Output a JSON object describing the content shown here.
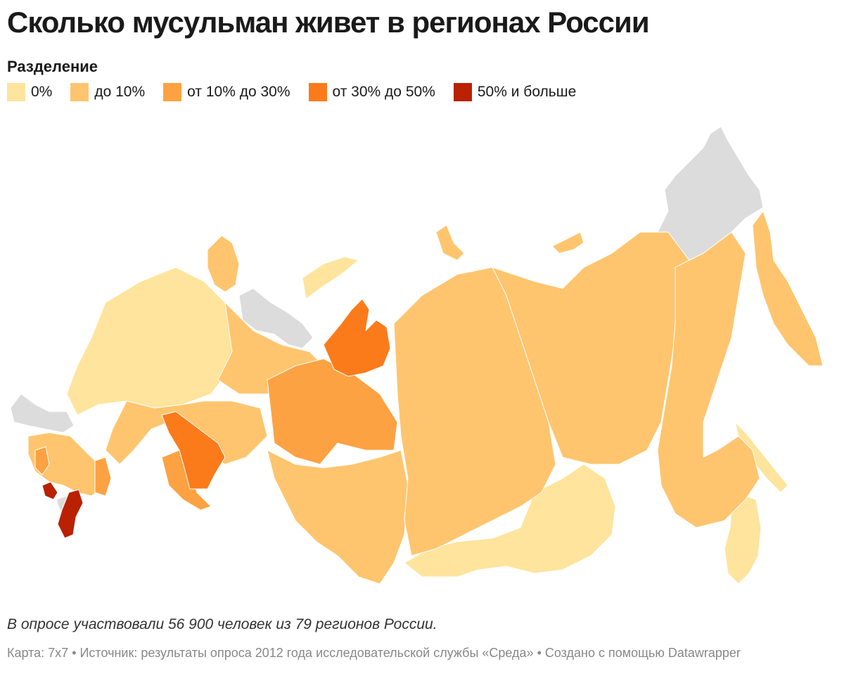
{
  "title": "Сколько мусульман живет в регионах России",
  "legend": {
    "title": "Разделение",
    "items": [
      {
        "label": "0%",
        "color": "#fee49c"
      },
      {
        "label": "до 10%",
        "color": "#fec56e"
      },
      {
        "label": "от 10% до 30%",
        "color": "#fda242"
      },
      {
        "label": "от 30% до 50%",
        "color": "#fb7b1b"
      },
      {
        "label": "50% и больше",
        "color": "#b92100"
      }
    ],
    "no_data_color": "#dcdcdc"
  },
  "note": "В опросе участвовали 56 900 человек из 79 регионов России.",
  "source": "Карта: 7x7 • Источник: результаты опроса 2012 года исследовательской службы «Среда» • Создано с помощью Datawrapper"
}
